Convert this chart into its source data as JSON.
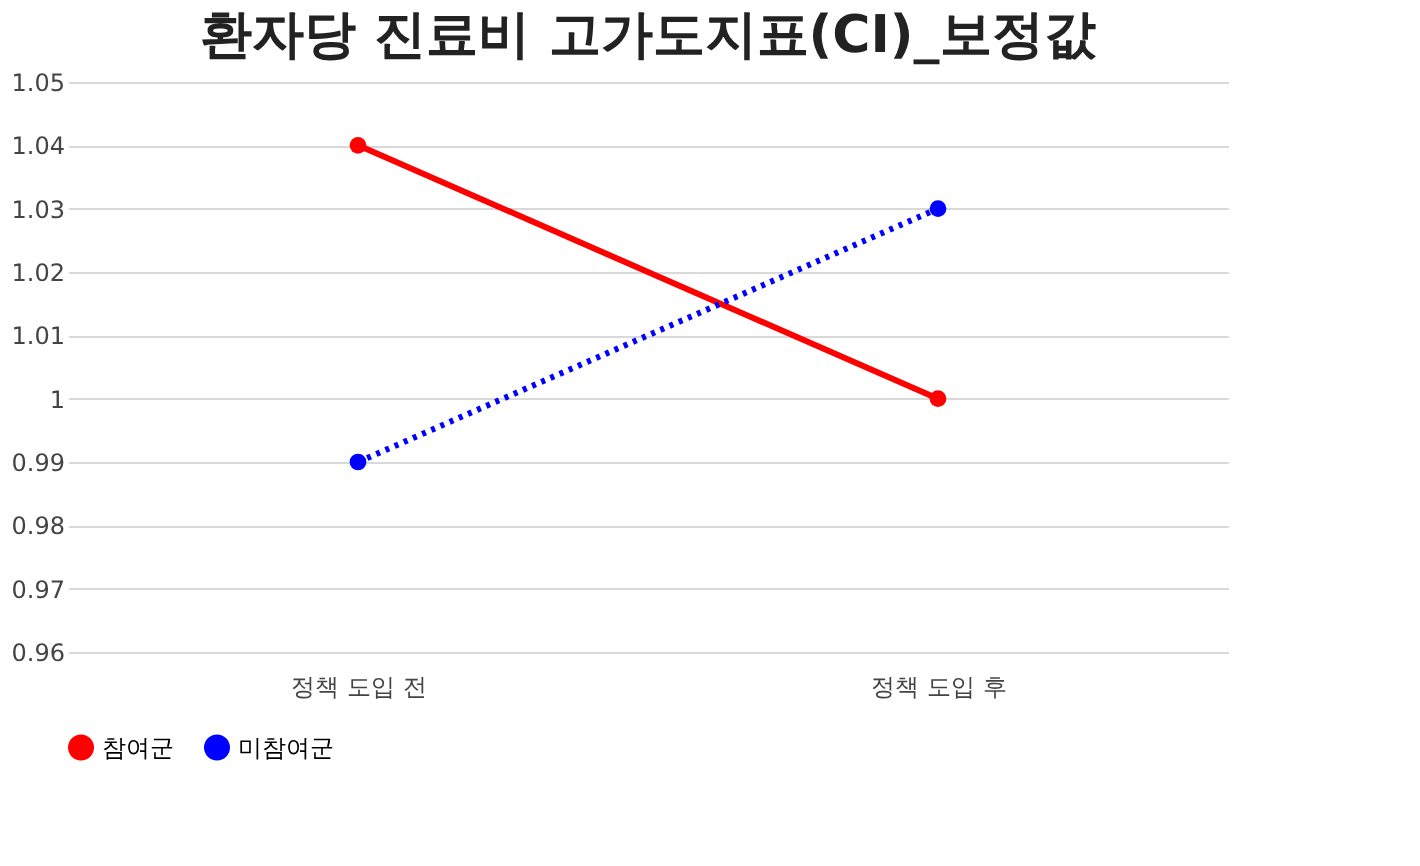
{
  "chart_data": {
    "type": "line",
    "title": "환자당 진료비 고가도지표(CI)_보정값",
    "categories": [
      "정책 도입 전",
      "정책 도입 후"
    ],
    "series": [
      {
        "name": "참여군",
        "color": "#ff0000",
        "values": [
          1.04,
          1.0
        ],
        "line_style": "solid"
      },
      {
        "name": "미참여군",
        "color": "#0000ff",
        "values": [
          0.99,
          1.03
        ],
        "line_style": "dotted"
      }
    ],
    "ylim": [
      0.96,
      1.05
    ],
    "yticks": [
      0.96,
      0.97,
      0.98,
      0.99,
      1,
      1.01,
      1.02,
      1.03,
      1.04,
      1.05
    ],
    "grid": "y",
    "legend": "bottom",
    "marker": "circle"
  }
}
